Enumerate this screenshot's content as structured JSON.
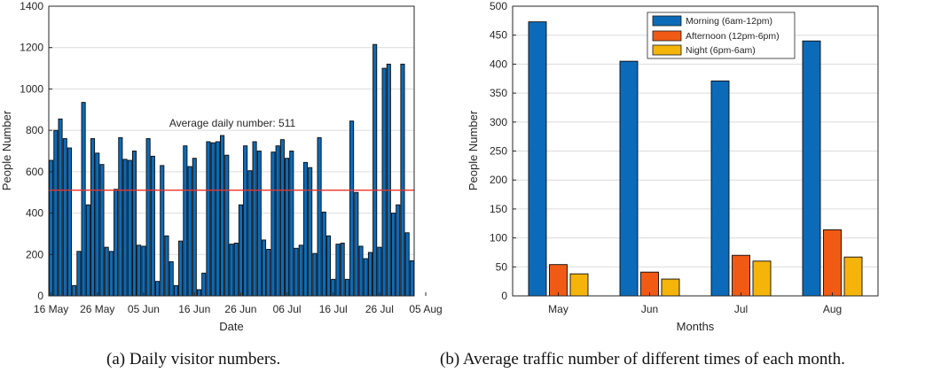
{
  "chart_data": [
    {
      "type": "bar",
      "title": "",
      "xlabel": "Date",
      "ylabel": "People Number",
      "ylim": [
        0,
        1400
      ],
      "yticks": [
        0,
        200,
        400,
        600,
        800,
        1000,
        1200,
        1400
      ],
      "xtick_labels": [
        "16 May",
        "26 May",
        "05 Jun",
        "16 Jun",
        "26 Jun",
        "06 Jul",
        "16 Jul",
        "26 Jul",
        "05 Aug"
      ],
      "xtick_day_index": [
        0,
        10,
        20,
        31,
        41,
        51,
        61,
        71,
        81
      ],
      "start_date": "16 May",
      "values": [
        655,
        800,
        855,
        760,
        715,
        50,
        215,
        935,
        440,
        760,
        690,
        635,
        235,
        215,
        515,
        765,
        660,
        655,
        700,
        245,
        240,
        760,
        675,
        70,
        630,
        290,
        165,
        50,
        265,
        725,
        625,
        665,
        30,
        110,
        745,
        740,
        745,
        775,
        680,
        250,
        255,
        440,
        725,
        605,
        745,
        700,
        270,
        225,
        695,
        725,
        755,
        665,
        700,
        230,
        245,
        645,
        620,
        205,
        765,
        405,
        290,
        80,
        250,
        255,
        80,
        845,
        500,
        240,
        180,
        210,
        1215,
        235,
        1100,
        1120,
        400,
        440,
        1120,
        305,
        170
      ],
      "average": 511,
      "average_label": "Average daily number: 511",
      "average_line_color": "#e8332c",
      "bar_color": "#0c6bb8"
    },
    {
      "type": "bar",
      "title": "",
      "xlabel": "Months",
      "ylabel": "People Number",
      "ylim": [
        0,
        500
      ],
      "yticks": [
        0,
        50,
        100,
        150,
        200,
        250,
        300,
        350,
        400,
        450,
        500
      ],
      "categories": [
        "May",
        "Jun",
        "Jul",
        "Aug"
      ],
      "series": [
        {
          "name": "Morning (6am-12pm)",
          "values": [
            473,
            405,
            371,
            440
          ],
          "color": "#0c6bb8"
        },
        {
          "name": "Afternoon (12pm-6pm)",
          "values": [
            54,
            41,
            70,
            114
          ],
          "color": "#f05a14"
        },
        {
          "name": "Night (6pm-6am)",
          "values": [
            38,
            29,
            60,
            67
          ],
          "color": "#f5b40a"
        }
      ],
      "legend_position": "top-right"
    }
  ],
  "captions": {
    "a": "(a) Daily visitor numbers.",
    "b": "(b) Average traffic number of different times of each month."
  }
}
